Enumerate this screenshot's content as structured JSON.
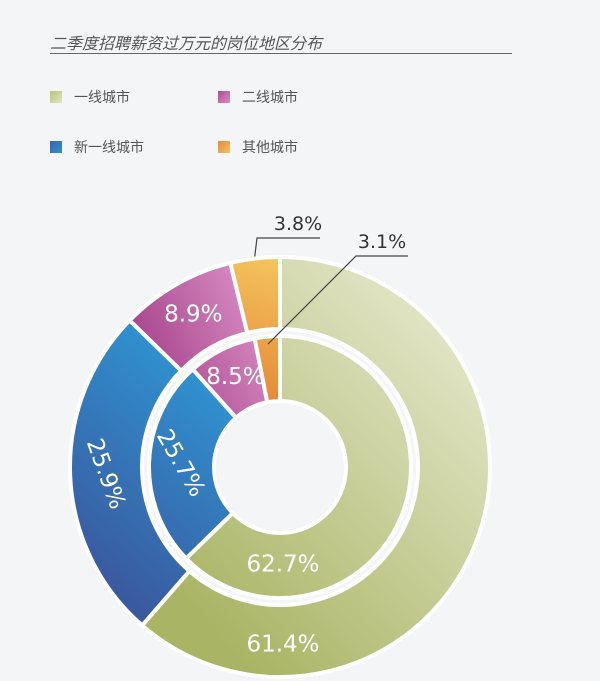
{
  "page": {
    "title": "二季度招聘薪资过万元的岗位地区分布"
  },
  "chart_data": {
    "type": "pie",
    "variant": "nested-donut",
    "categories": [
      "一线城市",
      "新一线城市",
      "二线城市",
      "其他城市"
    ],
    "series": [
      {
        "ring": "outer",
        "values": [
          61.4,
          25.9,
          8.9,
          3.8
        ],
        "labels": [
          "61.4%",
          "25.9%",
          "8.9%",
          "3.8%"
        ]
      },
      {
        "ring": "inner",
        "values": [
          62.7,
          25.7,
          8.5,
          3.1
        ],
        "labels": [
          "62.7%",
          "25.7%",
          "8.5%",
          "3.1%"
        ]
      }
    ],
    "legend": {
      "position": "top-left",
      "entries": [
        "一线城市",
        "二线城市",
        "新一线城市",
        "其他城市"
      ]
    },
    "colors": {
      "一线城市": [
        "#a9b464",
        "#e8ebd2"
      ],
      "新一线城市": [
        "#3a5fa6",
        "#2f8fcf"
      ],
      "二线城市": [
        "#a8488e",
        "#d890c6"
      ],
      "其他城市": [
        "#e78c3c",
        "#f4c25a"
      ]
    }
  }
}
